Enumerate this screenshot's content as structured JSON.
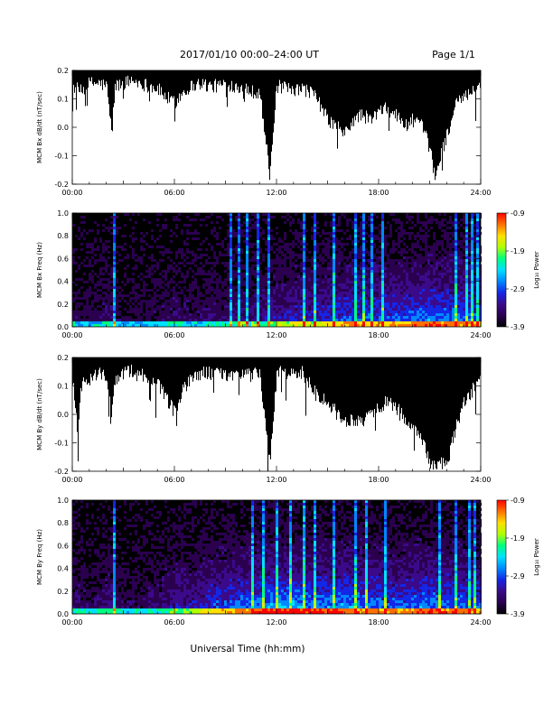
{
  "header": {
    "title": "2017/01/10   00:00–24:00 UT",
    "page": "Page 1/1"
  },
  "xlabel": "Universal Time (hh:mm)",
  "colorbar": {
    "label": "Log₁₀ Power",
    "ticks": [
      "-0.9",
      "-1.9",
      "-2.9",
      "-3.9"
    ],
    "range": [
      -3.9,
      -0.9
    ]
  },
  "chart_data": [
    {
      "type": "line",
      "title": "",
      "ylabel": "MCM Bx dB/dt (nT/sec)",
      "xlim": [
        0,
        24
      ],
      "ylim": [
        -0.2,
        0.2
      ],
      "xticks": [
        "00:00",
        "06:00",
        "12:00",
        "18:00",
        "24:00"
      ],
      "yticks": [
        "0.2",
        "0.1",
        "0.0",
        "-0.1",
        "-0.2"
      ],
      "x_hours": [
        0,
        0.5,
        1,
        1.5,
        2,
        2.3,
        2.5,
        3,
        3.5,
        4,
        4.5,
        5,
        5.5,
        6,
        6.5,
        7,
        7.5,
        8,
        8.5,
        9,
        9.5,
        10,
        10.5,
        11,
        11.6,
        12,
        12.5,
        13,
        13.5,
        14,
        14.5,
        15,
        15.5,
        16,
        16.5,
        17,
        17.5,
        18,
        18.5,
        19,
        19.5,
        20,
        20.5,
        21,
        21.3,
        21.5,
        22,
        22.5,
        23,
        23.5,
        24
      ],
      "y_min": [
        0.12,
        0.1,
        0.13,
        0.13,
        0.12,
        -0.05,
        0.12,
        0.13,
        0.14,
        0.13,
        0.12,
        0.11,
        0.08,
        0.06,
        0.1,
        0.12,
        0.13,
        0.12,
        0.12,
        0.13,
        0.12,
        0.12,
        0.1,
        0.1,
        -0.2,
        0.12,
        0.11,
        0.1,
        0.11,
        0.1,
        0.06,
        0.0,
        -0.02,
        -0.05,
        0.0,
        0.02,
        0.0,
        0.03,
        0.04,
        0.02,
        -0.02,
        0.0,
        -0.02,
        -0.1,
        -0.2,
        -0.15,
        -0.05,
        0.05,
        0.08,
        0.1,
        0.12
      ],
      "y_max": [
        0.2,
        0.2,
        0.2,
        0.2,
        0.2,
        0.2,
        0.2,
        0.2,
        0.2,
        0.2,
        0.2,
        0.2,
        0.2,
        0.2,
        0.2,
        0.2,
        0.2,
        0.2,
        0.2,
        0.2,
        0.2,
        0.2,
        0.2,
        0.2,
        0.2,
        0.2,
        0.2,
        0.2,
        0.2,
        0.2,
        0.2,
        0.2,
        0.2,
        0.2,
        0.2,
        0.2,
        0.2,
        0.2,
        0.2,
        0.2,
        0.2,
        0.2,
        0.2,
        0.2,
        0.2,
        0.2,
        0.2,
        0.2,
        0.2,
        0.2,
        0.2
      ],
      "color": "#000000"
    },
    {
      "type": "heatmap",
      "title": "",
      "ylabel": "MCM Bx Freq (Hz)",
      "xlim": [
        0,
        24
      ],
      "ylim": [
        0,
        1.0
      ],
      "xticks": [
        "00:00",
        "06:00",
        "12:00",
        "18:00",
        "24:00"
      ],
      "yticks": [
        "1.0",
        "0.8",
        "0.6",
        "0.4",
        "0.2",
        "0.0"
      ],
      "x_hours": [
        0,
        1,
        2,
        3,
        4,
        5,
        6,
        7,
        8,
        9,
        10,
        11,
        12,
        13,
        14,
        15,
        16,
        17,
        18,
        19,
        20,
        21,
        22,
        23,
        24
      ],
      "activity": [
        0.15,
        0.12,
        0.2,
        0.1,
        0.1,
        0.15,
        0.2,
        0.15,
        0.2,
        0.2,
        0.25,
        0.25,
        0.3,
        0.35,
        0.35,
        0.4,
        0.45,
        0.45,
        0.45,
        0.45,
        0.5,
        0.55,
        0.5,
        0.5,
        0.4
      ],
      "strong_events_hours": [
        2.35,
        9.3,
        9.7,
        10.2,
        10.8,
        11.5,
        13.5,
        14.2,
        15.3,
        16.5,
        17.1,
        17.5,
        18.2,
        22.5,
        23.1,
        23.4,
        23.7
      ],
      "color_scale": [
        "#000000",
        "#2b004f",
        "#3a0a8a",
        "#1426e6",
        "#0088ff",
        "#00e0ff",
        "#00ff80",
        "#b0ff00",
        "#ffe000",
        "#ff7000",
        "#ff0000"
      ]
    },
    {
      "type": "line",
      "title": "",
      "ylabel": "MCM By dB/dt (nT/sec)",
      "xlim": [
        0,
        24
      ],
      "ylim": [
        -0.2,
        0.2
      ],
      "xticks": [
        "00:00",
        "06:00",
        "12:00",
        "18:00",
        "24:00"
      ],
      "yticks": [
        "0.2",
        "0.1",
        "0.0",
        "-0.1",
        "-0.2"
      ],
      "x_hours": [
        0,
        0.3,
        0.5,
        1,
        1.5,
        2,
        2.3,
        2.5,
        3,
        3.5,
        4,
        4.5,
        5,
        5.5,
        6,
        6.5,
        7,
        7.5,
        8,
        8.5,
        9,
        9.5,
        10,
        10.5,
        11,
        11.6,
        12,
        12.5,
        13,
        13.5,
        14,
        14.5,
        15,
        15.5,
        16,
        16.5,
        17,
        17.5,
        18,
        18.5,
        19,
        19.5,
        20,
        20.5,
        21,
        21.5,
        22,
        22.5,
        23,
        23.5,
        24
      ],
      "y_min": [
        0.1,
        -0.1,
        0.08,
        0.1,
        0.12,
        0.1,
        -0.03,
        0.1,
        0.12,
        0.13,
        0.12,
        0.1,
        0.08,
        0.03,
        -0.02,
        0.06,
        0.1,
        0.12,
        0.12,
        0.12,
        0.11,
        0.12,
        0.12,
        0.11,
        0.12,
        -0.2,
        0.12,
        0.12,
        0.12,
        0.12,
        0.08,
        0.04,
        0.02,
        -0.02,
        -0.05,
        -0.04,
        -0.05,
        -0.02,
        0.0,
        0.02,
        0.0,
        -0.04,
        -0.08,
        -0.1,
        -0.2,
        -0.2,
        -0.2,
        -0.08,
        0.02,
        0.06,
        0.1
      ],
      "y_max": [
        0.2,
        0.2,
        0.2,
        0.2,
        0.2,
        0.2,
        0.2,
        0.2,
        0.2,
        0.2,
        0.2,
        0.2,
        0.2,
        0.2,
        0.2,
        0.2,
        0.2,
        0.2,
        0.2,
        0.2,
        0.2,
        0.2,
        0.2,
        0.2,
        0.2,
        0.2,
        0.2,
        0.2,
        0.2,
        0.2,
        0.2,
        0.2,
        0.2,
        0.2,
        0.2,
        0.2,
        0.2,
        0.2,
        0.2,
        0.2,
        0.2,
        0.2,
        0.2,
        0.2,
        0.2,
        0.2,
        0.2,
        0.2,
        0.2,
        0.2,
        0.2
      ],
      "color": "#000000"
    },
    {
      "type": "heatmap",
      "title": "",
      "ylabel": "MCM By Freq (Hz)",
      "xlim": [
        0,
        24
      ],
      "ylim": [
        0,
        1.0
      ],
      "xticks": [
        "00:00",
        "06:00",
        "12:00",
        "18:00",
        "24:00"
      ],
      "yticks": [
        "1.0",
        "0.8",
        "0.6",
        "0.4",
        "0.2",
        "0.0"
      ],
      "x_hours": [
        0,
        1,
        2,
        3,
        4,
        5,
        6,
        7,
        8,
        9,
        10,
        11,
        12,
        13,
        14,
        15,
        16,
        17,
        18,
        19,
        20,
        21,
        22,
        23,
        24
      ],
      "activity": [
        0.2,
        0.15,
        0.25,
        0.15,
        0.15,
        0.2,
        0.3,
        0.3,
        0.4,
        0.45,
        0.5,
        0.55,
        0.6,
        0.6,
        0.55,
        0.55,
        0.55,
        0.5,
        0.5,
        0.45,
        0.5,
        0.55,
        0.5,
        0.5,
        0.45
      ],
      "strong_events_hours": [
        2.35,
        9.0,
        9.8,
        10.5,
        11.2,
        12.0,
        12.8,
        13.5,
        14.2,
        15.3,
        16.5,
        17.2,
        17.6,
        18.3,
        21.5,
        22.5,
        23.2,
        23.6
      ],
      "color_scale": [
        "#000000",
        "#2b004f",
        "#3a0a8a",
        "#1426e6",
        "#0088ff",
        "#00e0ff",
        "#00ff80",
        "#b0ff00",
        "#ffe000",
        "#ff7000",
        "#ff0000"
      ]
    }
  ]
}
